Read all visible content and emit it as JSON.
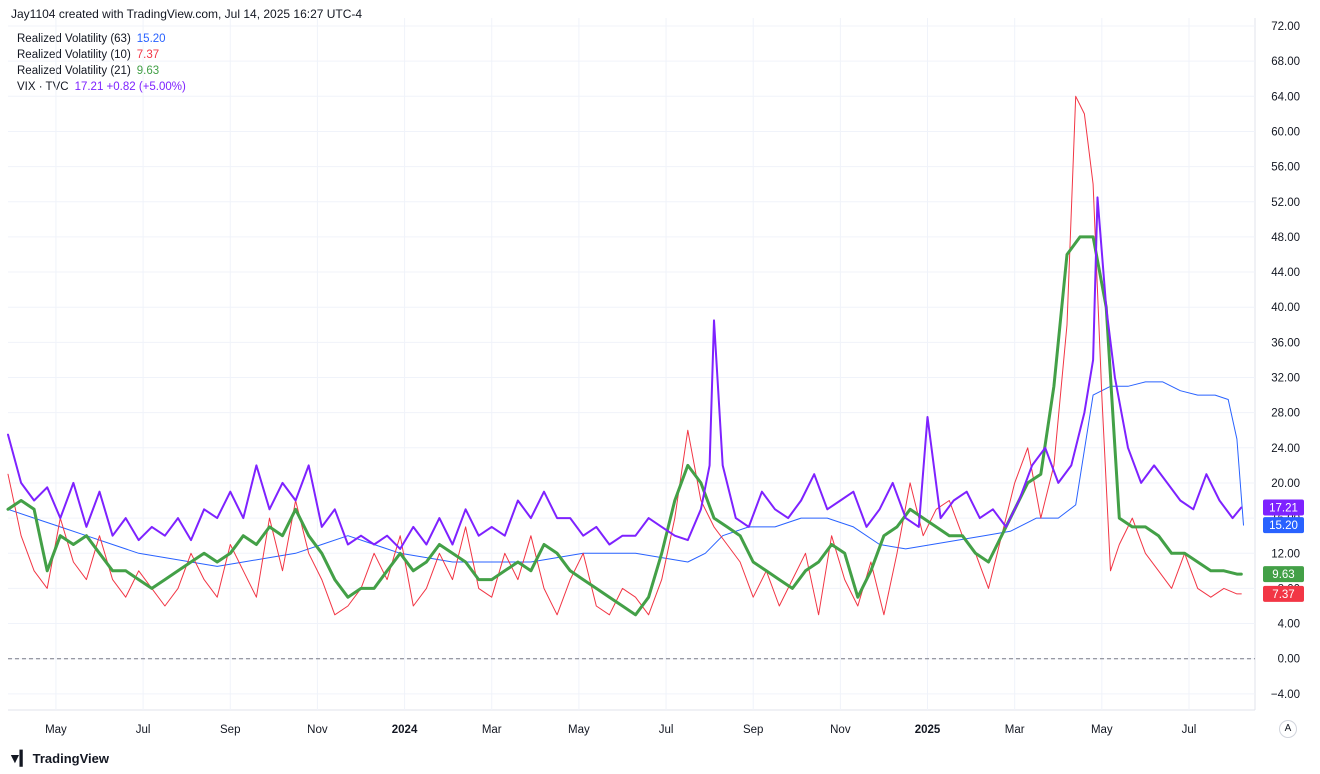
{
  "header": {
    "attribution": "Jay1104 created with TradingView.com, Jul 14, 2025 16:27 UTC-4"
  },
  "legend": [
    {
      "name": "Realized Volatility (63)",
      "value": "15.20",
      "color": "#2962ff"
    },
    {
      "name": "Realized Volatility (10)",
      "value": "7.37",
      "color": "#f23645"
    },
    {
      "name": "Realized Volatility (21)",
      "value": "9.63",
      "color": "#43a047"
    },
    {
      "name": "VIX · TVC",
      "value": "17.21 +0.82 (+5.00%)",
      "color": "#7e22ff"
    }
  ],
  "footer": {
    "brand": "TradingView",
    "auto_label": "A"
  },
  "chart_data": {
    "type": "line",
    "title": "",
    "ylim": [
      -6,
      72
    ],
    "y_ticks": [
      "72.00",
      "68.00",
      "64.00",
      "60.00",
      "56.00",
      "52.00",
      "48.00",
      "44.00",
      "40.00",
      "36.00",
      "32.00",
      "28.00",
      "24.00",
      "20.00",
      "16.00",
      "12.00",
      "8.00",
      "4.00",
      "0.00",
      "−4.00"
    ],
    "x_ticks": [
      "May",
      "Jul",
      "Sep",
      "Nov",
      "2024",
      "Mar",
      "May",
      "Jul",
      "Sep",
      "Nov",
      "2025",
      "Mar",
      "May",
      "Jul"
    ],
    "x_ticks_bold": [
      false,
      false,
      false,
      false,
      true,
      false,
      false,
      false,
      false,
      false,
      true,
      false,
      false,
      false
    ],
    "x_tick_month_index": [
      2,
      4,
      6,
      8,
      10,
      12,
      14,
      16,
      18,
      20,
      22,
      24,
      26,
      28
    ],
    "x_range_month_index": [
      0.9,
      29.4
    ],
    "grid": true,
    "zero_line": "dashed",
    "series": [
      {
        "name": "VIX · TVC",
        "color": "#7e22ff",
        "width": 2,
        "x": [
          0.9,
          1.2,
          1.5,
          1.8,
          2.1,
          2.4,
          2.7,
          3.0,
          3.3,
          3.6,
          3.9,
          4.2,
          4.5,
          4.8,
          5.1,
          5.4,
          5.7,
          6.0,
          6.3,
          6.6,
          6.9,
          7.2,
          7.5,
          7.8,
          8.1,
          8.4,
          8.7,
          9.0,
          9.3,
          9.6,
          9.9,
          10.2,
          10.5,
          10.8,
          11.1,
          11.4,
          11.7,
          12.0,
          12.3,
          12.6,
          12.9,
          13.2,
          13.5,
          13.8,
          14.1,
          14.4,
          14.7,
          15.0,
          15.3,
          15.6,
          15.9,
          16.2,
          16.5,
          16.8,
          17.0,
          17.1,
          17.3,
          17.6,
          17.9,
          18.2,
          18.5,
          18.8,
          19.1,
          19.4,
          19.7,
          20.0,
          20.3,
          20.6,
          20.9,
          21.2,
          21.5,
          21.8,
          22.0,
          22.3,
          22.6,
          22.9,
          23.2,
          23.5,
          23.8,
          24.1,
          24.4,
          24.7,
          25.0,
          25.3,
          25.6,
          25.8,
          25.9,
          26.1,
          26.3,
          26.6,
          26.9,
          27.2,
          27.5,
          27.8,
          28.1,
          28.4,
          28.7,
          29.0,
          29.2
        ],
        "values": [
          25.5,
          20,
          18,
          19.5,
          16,
          20,
          15,
          19,
          14,
          16,
          13.5,
          15,
          14,
          16,
          13.5,
          17,
          16,
          19,
          16,
          22,
          17,
          20,
          18,
          22,
          15,
          17,
          13,
          14,
          13,
          14,
          12.5,
          15,
          13,
          16,
          13,
          17,
          14,
          15,
          14,
          18,
          16,
          19,
          16,
          16,
          14,
          15,
          13,
          14,
          14,
          16,
          15,
          14,
          13.5,
          17,
          22,
          38.5,
          22,
          16,
          15,
          19,
          17,
          16,
          18,
          21,
          17,
          18,
          19,
          15,
          17,
          20,
          16,
          15,
          27.5,
          16,
          18,
          19,
          16,
          17,
          15,
          18,
          22,
          24,
          20,
          22,
          28,
          34,
          52.5,
          40,
          32,
          24,
          20,
          22,
          20,
          18,
          17,
          21,
          18,
          16,
          17.21
        ],
        "last": "17.21"
      },
      {
        "name": "Realized Volatility (63)",
        "color": "#2962ff",
        "width": 1,
        "x": [
          0.9,
          1.5,
          2.1,
          2.7,
          3.3,
          3.9,
          4.5,
          5.1,
          5.7,
          6.3,
          6.9,
          7.5,
          8.1,
          8.7,
          9.3,
          9.9,
          10.5,
          11.1,
          11.7,
          12.3,
          12.9,
          13.5,
          14.1,
          14.7,
          15.3,
          15.9,
          16.5,
          16.9,
          17.3,
          17.9,
          18.5,
          19.1,
          19.7,
          20.3,
          20.9,
          21.5,
          22.1,
          22.7,
          23.3,
          23.9,
          24.5,
          25.0,
          25.4,
          25.8,
          26.2,
          26.6,
          27.0,
          27.4,
          27.8,
          28.2,
          28.6,
          28.9,
          29.1,
          29.25
        ],
        "values": [
          17,
          16,
          15,
          14,
          13,
          12,
          11.5,
          11,
          10.5,
          11,
          11.5,
          12,
          13,
          14,
          13,
          12,
          11.5,
          11,
          11,
          11,
          11,
          11.5,
          12,
          12,
          12,
          11.5,
          11,
          12,
          14,
          15,
          15,
          16,
          16,
          15,
          13,
          12.5,
          13,
          13.5,
          14,
          14.5,
          16,
          16,
          17.5,
          30,
          31,
          31,
          31.5,
          31.5,
          30.5,
          30,
          30,
          29.5,
          25,
          15.2
        ],
        "last": "15.20"
      },
      {
        "name": "Realized Volatility (21)",
        "color": "#43a047",
        "width": 3,
        "x": [
          0.9,
          1.2,
          1.5,
          1.8,
          2.1,
          2.4,
          2.7,
          3.0,
          3.3,
          3.6,
          3.9,
          4.2,
          4.5,
          4.8,
          5.1,
          5.4,
          5.7,
          6.0,
          6.3,
          6.6,
          6.9,
          7.2,
          7.5,
          7.8,
          8.1,
          8.4,
          8.7,
          9.0,
          9.3,
          9.6,
          9.9,
          10.2,
          10.5,
          10.8,
          11.1,
          11.4,
          11.7,
          12.0,
          12.3,
          12.6,
          12.9,
          13.2,
          13.5,
          13.8,
          14.1,
          14.4,
          14.7,
          15.0,
          15.3,
          15.6,
          15.9,
          16.2,
          16.5,
          16.8,
          17.1,
          17.4,
          17.7,
          18.0,
          18.3,
          18.6,
          18.9,
          19.2,
          19.5,
          19.8,
          20.1,
          20.4,
          20.7,
          21.0,
          21.3,
          21.6,
          21.9,
          22.2,
          22.5,
          22.8,
          23.1,
          23.4,
          23.7,
          24.0,
          24.3,
          24.6,
          24.9,
          25.2,
          25.5,
          25.8,
          26.1,
          26.4,
          26.7,
          27.0,
          27.3,
          27.6,
          27.9,
          28.2,
          28.5,
          28.8,
          29.1,
          29.2
        ],
        "values": [
          17,
          18,
          17,
          10,
          14,
          13,
          14,
          12,
          10,
          10,
          9,
          8,
          9,
          10,
          11,
          12,
          11,
          12,
          14,
          13,
          15,
          14,
          17,
          14,
          12,
          9,
          7,
          8,
          8,
          10,
          12,
          10,
          11,
          13,
          12,
          11,
          9,
          9,
          10,
          11,
          10,
          13,
          12,
          10,
          9,
          8,
          7,
          6,
          5,
          7,
          12,
          18,
          22,
          20,
          16,
          15,
          14,
          11,
          10,
          9,
          8,
          10,
          11,
          13,
          12,
          7,
          10,
          14,
          15,
          17,
          16,
          15,
          14,
          14,
          12,
          11,
          14,
          17,
          20,
          21,
          31,
          46,
          48,
          48,
          40,
          16,
          15,
          15,
          14,
          12,
          12,
          11,
          10,
          10,
          9.63,
          9.63
        ],
        "last": "9.63"
      },
      {
        "name": "Realized Volatility (10)",
        "color": "#f23645",
        "width": 1,
        "x": [
          0.9,
          1.2,
          1.5,
          1.8,
          2.1,
          2.4,
          2.7,
          3.0,
          3.3,
          3.6,
          3.9,
          4.2,
          4.5,
          4.8,
          5.1,
          5.4,
          5.7,
          6.0,
          6.3,
          6.6,
          6.9,
          7.2,
          7.5,
          7.8,
          8.1,
          8.4,
          8.7,
          9.0,
          9.3,
          9.6,
          9.9,
          10.2,
          10.5,
          10.8,
          11.1,
          11.4,
          11.7,
          12.0,
          12.3,
          12.6,
          12.9,
          13.2,
          13.5,
          13.8,
          14.1,
          14.4,
          14.7,
          15.0,
          15.3,
          15.6,
          15.9,
          16.2,
          16.5,
          16.8,
          17.1,
          17.4,
          17.7,
          18.0,
          18.3,
          18.6,
          18.9,
          19.2,
          19.5,
          19.8,
          20.1,
          20.4,
          20.7,
          21.0,
          21.3,
          21.6,
          21.9,
          22.2,
          22.5,
          22.8,
          23.1,
          23.4,
          23.7,
          24.0,
          24.3,
          24.6,
          24.9,
          25.2,
          25.4,
          25.6,
          25.8,
          26.0,
          26.2,
          26.4,
          26.7,
          27.0,
          27.3,
          27.6,
          27.9,
          28.2,
          28.5,
          28.8,
          29.1,
          29.2
        ],
        "values": [
          21,
          14,
          10,
          8,
          16,
          11,
          9,
          14,
          9,
          7,
          10,
          8,
          6,
          8,
          12,
          9,
          7,
          13,
          10,
          7,
          16,
          10,
          18,
          12,
          9,
          5,
          6,
          8,
          12,
          9,
          14,
          6,
          8,
          12,
          9,
          15,
          8,
          7,
          12,
          9,
          14,
          8,
          5,
          9,
          12,
          6,
          5,
          8,
          7,
          5,
          9,
          16,
          26,
          18,
          15,
          13,
          11,
          7,
          10,
          6,
          9,
          12,
          5,
          14,
          9,
          6,
          11,
          5,
          12,
          20,
          14,
          17,
          18,
          14,
          12,
          8,
          14,
          20,
          24,
          16,
          22,
          38,
          64,
          62,
          54,
          30,
          10,
          13,
          16,
          12,
          10,
          8,
          12,
          8,
          7,
          8,
          7.37,
          7.37
        ],
        "last": "7.37"
      }
    ]
  }
}
